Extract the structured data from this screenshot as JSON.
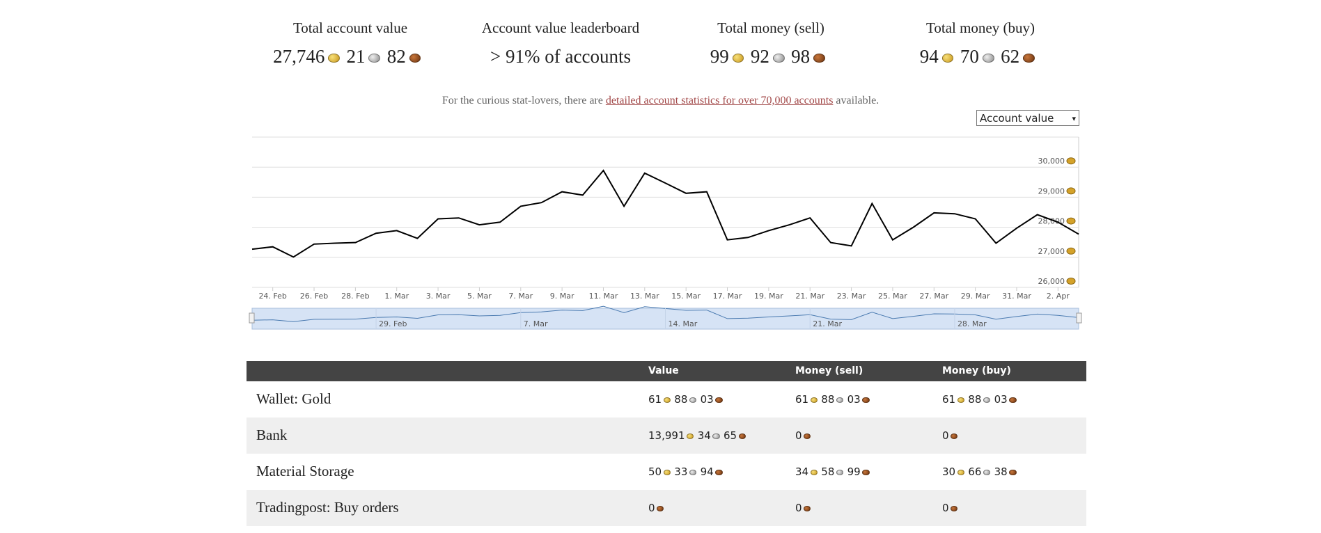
{
  "stats": [
    {
      "label": "Total account value",
      "amount": [
        "27,746",
        "21",
        "82"
      ]
    },
    {
      "label": "Account value leaderboard",
      "text": "> 91% of accounts"
    },
    {
      "label": "Total money (sell)",
      "amount": [
        "99",
        "92",
        "98"
      ]
    },
    {
      "label": "Total money (buy)",
      "amount": [
        "94",
        "70",
        "62"
      ]
    }
  ],
  "note": {
    "before": "For the curious stat-lovers, there are ",
    "link": "detailed account statistics for over 70,000 accounts",
    "after": " available."
  },
  "dropdown": "Account value",
  "chart_data": {
    "type": "line",
    "categories": [
      null,
      "24. Feb",
      null,
      "26. Feb",
      null,
      "28. Feb",
      null,
      "1. Mar",
      null,
      "3. Mar",
      null,
      "5. Mar",
      null,
      "7. Mar",
      null,
      "9. Mar",
      null,
      "11. Mar",
      null,
      "13. Mar",
      null,
      "15. Mar",
      null,
      "17. Mar",
      null,
      "19. Mar",
      null,
      "21. Mar",
      null,
      "23. Mar",
      null,
      "25. Mar",
      null,
      "27. Mar",
      null,
      "29. Mar",
      null,
      "31. Mar",
      null,
      "2. Apr",
      null
    ],
    "values": [
      27270,
      27350,
      27010,
      27440,
      27470,
      27490,
      27800,
      27890,
      27630,
      28280,
      28310,
      28080,
      28170,
      28700,
      28820,
      29180,
      29070,
      29890,
      28700,
      29800,
      29470,
      29130,
      29180,
      27580,
      27660,
      27890,
      28080,
      28310,
      27490,
      27380,
      28790,
      27580,
      28000,
      28480,
      28450,
      28280,
      27470,
      27970,
      28420,
      28170,
      27770
    ],
    "color": "#000000",
    "ylim": [
      26000,
      31000
    ],
    "yticks": [
      {
        "value": 26000,
        "label": "26,000"
      },
      {
        "value": 27000,
        "label": "27,000"
      },
      {
        "value": 28000,
        "label": "28,000"
      },
      {
        "value": 29000,
        "label": "29,000"
      },
      {
        "value": 30000,
        "label": "30,000"
      }
    ],
    "grid": true,
    "navigator": {
      "labels": [
        "29. Feb",
        "7. Mar",
        "14. Mar",
        "21. Mar",
        "28. Mar"
      ],
      "color": "#4a7ab0"
    }
  },
  "table": {
    "header": [
      "Value",
      "Money (sell)",
      "Money (buy)"
    ],
    "rows": [
      [
        "Wallet: Gold",
        [
          "61",
          "88",
          "03"
        ],
        [
          "61",
          "88",
          "03"
        ],
        [
          "61",
          "88",
          "03"
        ]
      ],
      [
        "Bank",
        [
          "13,991",
          "34",
          "65"
        ],
        [
          "0"
        ],
        [
          "0"
        ]
      ],
      [
        "Material Storage",
        [
          "50",
          "33",
          "94"
        ],
        [
          "34",
          "58",
          "99"
        ],
        [
          "30",
          "66",
          "38"
        ]
      ],
      [
        "Tradingpost: Buy orders",
        [
          "0"
        ],
        [
          "0"
        ],
        [
          "0"
        ]
      ]
    ]
  }
}
